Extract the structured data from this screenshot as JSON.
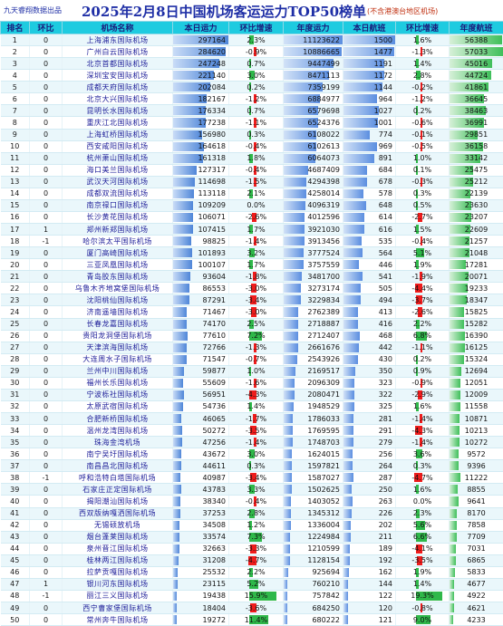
{
  "header": {
    "left": "九天睿翔数据出品",
    "title": "2025年2月8日中国机场客运运力TOP50榜单",
    "right": "(不含港澳台地区机场)"
  },
  "colors": {
    "accent": "#1ecbe0",
    "title": "#1f2fa6",
    "negative": "#ee1c1c",
    "positive": "#2fb84a",
    "bar_blue": "#4f86d8",
    "bar_green": "#3fbf5a"
  },
  "columns": [
    "排名",
    "环比",
    "机场名称",
    "本日运力",
    "环比增速",
    "年度运力",
    "本日航班",
    "环比增速",
    "年度航班"
  ],
  "rows": [
    {
      "rank": "1",
      "chg": "0",
      "name": "上海浦东国际机场",
      "cap": "297164",
      "cg": "2.3%",
      "ycap": "11123622",
      "fl": "1500",
      "fg": "1.6%",
      "yfl": "56388"
    },
    {
      "rank": "2",
      "chg": "0",
      "name": "广州白云国际机场",
      "cap": "284620",
      "cg": "-0.9%",
      "ycap": "10886665",
      "fl": "1477",
      "fg": "-1.3%",
      "yfl": "57033"
    },
    {
      "rank": "3",
      "chg": "0",
      "name": "北京首都国际机场",
      "cap": "247248",
      "cg": "0.7%",
      "ycap": "9447499",
      "fl": "1191",
      "fg": "1.4%",
      "yfl": "45016"
    },
    {
      "rank": "4",
      "chg": "0",
      "name": "深圳宝安国际机场",
      "cap": "221140",
      "cg": "3.0%",
      "ycap": "8471113",
      "fl": "1172",
      "fg": "2.8%",
      "yfl": "44724"
    },
    {
      "rank": "5",
      "chg": "0",
      "name": "成都天府国际机场",
      "cap": "202084",
      "cg": "0.2%",
      "ycap": "7359199",
      "fl": "1144",
      "fg": "-0.2%",
      "yfl": "41861"
    },
    {
      "rank": "6",
      "chg": "0",
      "name": "北京大兴国际机场",
      "cap": "182167",
      "cg": "-1.2%",
      "ycap": "6884977",
      "fl": "964",
      "fg": "-1.2%",
      "yfl": "36645"
    },
    {
      "rank": "7",
      "chg": "0",
      "name": "昆明长水国际机场",
      "cap": "176334",
      "cg": "0.7%",
      "ycap": "6579698",
      "fl": "1027",
      "fg": "0.2%",
      "yfl": "38463"
    },
    {
      "rank": "8",
      "chg": "0",
      "name": "重庆江北国际机场",
      "cap": "177238",
      "cg": "-1.1%",
      "ycap": "6524376",
      "fl": "1001",
      "fg": "-0.6%",
      "yfl": "36991"
    },
    {
      "rank": "9",
      "chg": "0",
      "name": "上海虹桥国际机场",
      "cap": "156980",
      "cg": "0.3%",
      "ycap": "6108022",
      "fl": "774",
      "fg": "-0.1%",
      "yfl": "29851"
    },
    {
      "rank": "10",
      "chg": "0",
      "name": "西安咸阳国际机场",
      "cap": "164618",
      "cg": "-0.4%",
      "ycap": "6102613",
      "fl": "969",
      "fg": "-0.5%",
      "yfl": "36158"
    },
    {
      "rank": "11",
      "chg": "0",
      "name": "杭州萧山国际机场",
      "cap": "161318",
      "cg": "1.8%",
      "ycap": "6064073",
      "fl": "891",
      "fg": "1.0%",
      "yfl": "33142"
    },
    {
      "rank": "12",
      "chg": "0",
      "name": "海口美兰国际机场",
      "cap": "127317",
      "cg": "-0.4%",
      "ycap": "4687409",
      "fl": "684",
      "fg": "0.1%",
      "yfl": "25475"
    },
    {
      "rank": "13",
      "chg": "0",
      "name": "武汉天河国际机场",
      "cap": "114698",
      "cg": "-1.5%",
      "ycap": "4294398",
      "fl": "678",
      "fg": "-0.3%",
      "yfl": "25212"
    },
    {
      "rank": "14",
      "chg": "0",
      "name": "成都双流国际机场",
      "cap": "113118",
      "cg": "2.1%",
      "ycap": "4258014",
      "fl": "578",
      "fg": "0.3%",
      "yfl": "22139"
    },
    {
      "rank": "15",
      "chg": "0",
      "name": "南京禄口国际机场",
      "cap": "109209",
      "cg": "0.0%",
      "ycap": "4096319",
      "fl": "648",
      "fg": "0.5%",
      "yfl": "23630"
    },
    {
      "rank": "16",
      "chg": "0",
      "name": "长沙黄花国际机场",
      "cap": "106071",
      "cg": "-2.6%",
      "ycap": "4012596",
      "fl": "614",
      "fg": "-2.7%",
      "yfl": "23207"
    },
    {
      "rank": "17",
      "chg": "1",
      "name": "郑州新郑国际机场",
      "cap": "107415",
      "cg": "1.7%",
      "ycap": "3921030",
      "fl": "616",
      "fg": "1.5%",
      "yfl": "22609"
    },
    {
      "rank": "18",
      "chg": "-1",
      "name": "哈尔滨太平国际机场",
      "cap": "98825",
      "cg": "-1.4%",
      "ycap": "3913456",
      "fl": "535",
      "fg": "-0.4%",
      "yfl": "21257"
    },
    {
      "rank": "19",
      "chg": "0",
      "name": "厦门高崎国际机场",
      "cap": "101893",
      "cg": "3.2%",
      "ycap": "3777524",
      "fl": "564",
      "fg": "5.1%",
      "yfl": "21048"
    },
    {
      "rank": "20",
      "chg": "0",
      "name": "三亚凤凰国际机场",
      "cap": "100107",
      "cg": "1.7%",
      "ycap": "3757559",
      "fl": "446",
      "fg": "1.9%",
      "yfl": "17281"
    },
    {
      "rank": "21",
      "chg": "0",
      "name": "青岛胶东国际机场",
      "cap": "93604",
      "cg": "-1.8%",
      "ycap": "3481700",
      "fl": "541",
      "fg": "-1.9%",
      "yfl": "20071"
    },
    {
      "rank": "22",
      "chg": "0",
      "name": "乌鲁木齐地窝堡国际机场",
      "cap": "86553",
      "cg": "-3.0%",
      "ycap": "3273174",
      "fl": "505",
      "fg": "-4.4%",
      "yfl": "19233"
    },
    {
      "rank": "23",
      "chg": "0",
      "name": "沈阳桃仙国际机场",
      "cap": "87291",
      "cg": "-3.4%",
      "ycap": "3229834",
      "fl": "494",
      "fg": "-3.7%",
      "yfl": "18347"
    },
    {
      "rank": "24",
      "chg": "0",
      "name": "济南遥墙国际机场",
      "cap": "71467",
      "cg": "-3.0%",
      "ycap": "2762389",
      "fl": "413",
      "fg": "-2.6%",
      "yfl": "15825"
    },
    {
      "rank": "25",
      "chg": "0",
      "name": "长春龙嘉国际机场",
      "cap": "74170",
      "cg": "2.5%",
      "ycap": "2718887",
      "fl": "416",
      "fg": "2.2%",
      "yfl": "15282"
    },
    {
      "rank": "26",
      "chg": "0",
      "name": "贵阳龙洞堡国际机场",
      "cap": "77610",
      "cg": "7.2%",
      "ycap": "2712407",
      "fl": "468",
      "fg": "6.8%",
      "yfl": "16390"
    },
    {
      "rank": "27",
      "chg": "0",
      "name": "天津滨海国际机场",
      "cap": "72766",
      "cg": "-1.3%",
      "ycap": "2661676",
      "fl": "442",
      "fg": "-1.1%",
      "yfl": "16125"
    },
    {
      "rank": "28",
      "chg": "0",
      "name": "大连周水子国际机场",
      "cap": "71547",
      "cg": "-0.7%",
      "ycap": "2543926",
      "fl": "430",
      "fg": "0.2%",
      "yfl": "15324"
    },
    {
      "rank": "29",
      "chg": "0",
      "name": "兰州中川国际机场",
      "cap": "59877",
      "cg": "1.0%",
      "ycap": "2169517",
      "fl": "350",
      "fg": "0.9%",
      "yfl": "12694"
    },
    {
      "rank": "30",
      "chg": "0",
      "name": "福州长乐国际机场",
      "cap": "55609",
      "cg": "-1.6%",
      "ycap": "2096309",
      "fl": "323",
      "fg": "-0.9%",
      "yfl": "12051"
    },
    {
      "rank": "31",
      "chg": "0",
      "name": "宁波栎社国际机场",
      "cap": "56951",
      "cg": "-4.3%",
      "ycap": "2080471",
      "fl": "322",
      "fg": "-2.9%",
      "yfl": "12009"
    },
    {
      "rank": "32",
      "chg": "0",
      "name": "太原武宿国际机场",
      "cap": "54736",
      "cg": "1.4%",
      "ycap": "1948529",
      "fl": "325",
      "fg": "1.6%",
      "yfl": "11558"
    },
    {
      "rank": "33",
      "chg": "0",
      "name": "合肥新桥国际机场",
      "cap": "46065",
      "cg": "-1.7%",
      "ycap": "1786033",
      "fl": "281",
      "fg": "-1.4%",
      "yfl": "10871"
    },
    {
      "rank": "34",
      "chg": "0",
      "name": "温州龙湾国际机场",
      "cap": "50272",
      "cg": "-3.5%",
      "ycap": "1769595",
      "fl": "291",
      "fg": "-4.3%",
      "yfl": "10213"
    },
    {
      "rank": "35",
      "chg": "0",
      "name": "珠海金湾机场",
      "cap": "47256",
      "cg": "-1.4%",
      "ycap": "1748703",
      "fl": "279",
      "fg": "-1.4%",
      "yfl": "10272"
    },
    {
      "rank": "36",
      "chg": "0",
      "name": "南宁吴圩国际机场",
      "cap": "43672",
      "cg": "3.0%",
      "ycap": "1624015",
      "fl": "256",
      "fg": "3.6%",
      "yfl": "9572"
    },
    {
      "rank": "37",
      "chg": "0",
      "name": "南昌昌北国际机场",
      "cap": "44611",
      "cg": "0.3%",
      "ycap": "1597821",
      "fl": "264",
      "fg": "0.3%",
      "yfl": "9396"
    },
    {
      "rank": "38",
      "chg": "-1",
      "name": "呼和浩特白塔国际机场",
      "cap": "40987",
      "cg": "-3.4%",
      "ycap": "1587027",
      "fl": "287",
      "fg": "-4.7%",
      "yfl": "11222"
    },
    {
      "rank": "39",
      "chg": "0",
      "name": "石家庄正定国际机场",
      "cap": "43783",
      "cg": "3.3%",
      "ycap": "1502625",
      "fl": "250",
      "fg": "1.6%",
      "yfl": "8855"
    },
    {
      "rank": "40",
      "chg": "0",
      "name": "揭阳潮汕国际机场",
      "cap": "38340",
      "cg": "-0.4%",
      "ycap": "1403052",
      "fl": "263",
      "fg": "0.0%",
      "yfl": "9641"
    },
    {
      "rank": "41",
      "chg": "0",
      "name": "西双版纳嘎洒国际机场",
      "cap": "37253",
      "cg": "2.8%",
      "ycap": "1345312",
      "fl": "226",
      "fg": "2.3%",
      "yfl": "8170"
    },
    {
      "rank": "42",
      "chg": "0",
      "name": "无锡硕放机场",
      "cap": "34508",
      "cg": "1.2%",
      "ycap": "1336004",
      "fl": "202",
      "fg": "5.6%",
      "yfl": "7858"
    },
    {
      "rank": "43",
      "chg": "0",
      "name": "烟台蓬莱国际机场",
      "cap": "33574",
      "cg": "7.3%",
      "ycap": "1224984",
      "fl": "211",
      "fg": "6.6%",
      "yfl": "7709"
    },
    {
      "rank": "44",
      "chg": "0",
      "name": "泉州晋江国际机场",
      "cap": "32663",
      "cg": "-3.3%",
      "ycap": "1210599",
      "fl": "189",
      "fg": "-4.1%",
      "yfl": "7031"
    },
    {
      "rank": "45",
      "chg": "0",
      "name": "桂林两江国际机场",
      "cap": "31208",
      "cg": "-4.7%",
      "ycap": "1128154",
      "fl": "192",
      "fg": "-3.5%",
      "yfl": "6865"
    },
    {
      "rank": "46",
      "chg": "0",
      "name": "拉萨贡嘎国际机场",
      "cap": "25532",
      "cg": "2.2%",
      "ycap": "925694",
      "fl": "162",
      "fg": "1.9%",
      "yfl": "5833"
    },
    {
      "rank": "47",
      "chg": "1",
      "name": "银川河东国际机场",
      "cap": "23115",
      "cg": "5.2%",
      "ycap": "760210",
      "fl": "144",
      "fg": "1.4%",
      "yfl": "4677"
    },
    {
      "rank": "48",
      "chg": "-1",
      "name": "丽江三义国际机场",
      "cap": "19438",
      "cg": "15.9%",
      "ycap": "757842",
      "fl": "122",
      "fg": "19.3%",
      "yfl": "4922"
    },
    {
      "rank": "49",
      "chg": "0",
      "name": "西宁曹家堡国际机场",
      "cap": "18404",
      "cg": "-3.6%",
      "ycap": "684250",
      "fl": "120",
      "fg": "-0.8%",
      "yfl": "4621"
    },
    {
      "rank": "50",
      "chg": "0",
      "name": "常州奔牛国际机场",
      "cap": "19272",
      "cg": "11.4%",
      "ycap": "680222",
      "fl": "121",
      "fg": "9.0%",
      "yfl": "4233"
    }
  ]
}
